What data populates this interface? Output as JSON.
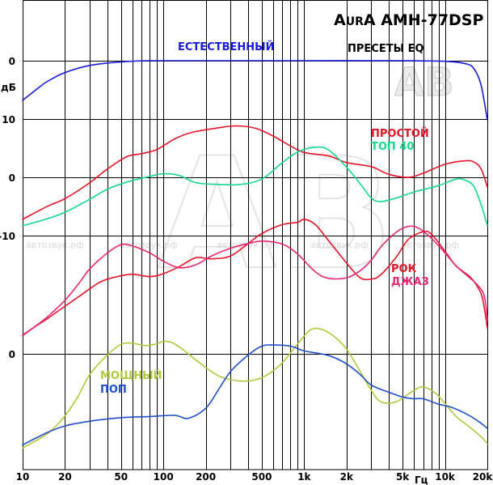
{
  "chart_data": {
    "type": "line",
    "title": "AurA AMH-77DSP",
    "title_prefix": "Aur",
    "title_rest": "A AMH-77DSP",
    "subtitle": "ПРЕСЕТЫ EQ",
    "ylabel": "дБ",
    "xlabel": "Гц",
    "x_scale": "log",
    "xlim": [
      10,
      20000
    ],
    "x_ticks": [
      {
        "value": 10,
        "label": "10"
      },
      {
        "value": 20,
        "label": "20"
      },
      {
        "value": 50,
        "label": "50"
      },
      {
        "value": 100,
        "label": "100"
      },
      {
        "value": 200,
        "label": "200"
      },
      {
        "value": 500,
        "label": "500"
      },
      {
        "value": 1000,
        "label": "1k"
      },
      {
        "value": 2000,
        "label": "2k"
      },
      {
        "value": 5000,
        "label": "5k"
      },
      {
        "value": 10000,
        "label": "10k"
      },
      {
        "value": 20000,
        "label": "20k"
      }
    ],
    "y_ticks": [
      "0",
      "10",
      "0",
      "-10",
      "0"
    ],
    "watermark": "автозвук.рф",
    "logo": "AB",
    "series": [
      {
        "name": "ЕСТЕСТВЕННЫЙ",
        "color": "#1a1adc",
        "points": [
          [
            10,
            -6.7
          ],
          [
            12,
            -5.2
          ],
          [
            15,
            -3.5
          ],
          [
            20,
            -2.0
          ],
          [
            30,
            -0.8
          ],
          [
            50,
            -0.2
          ],
          [
            80,
            0
          ],
          [
            200,
            0
          ],
          [
            1000,
            0
          ],
          [
            5000,
            0
          ],
          [
            10000,
            -0.1
          ],
          [
            14000,
            -0.5
          ],
          [
            16000,
            -1.3
          ],
          [
            18000,
            -4.0
          ],
          [
            20000,
            -10.0
          ]
        ]
      },
      {
        "name": "ПРОСТОЙ",
        "color": "#e8142a",
        "points": [
          [
            10,
            -7.1
          ],
          [
            15,
            -4.9
          ],
          [
            20,
            -3.6
          ],
          [
            30,
            -0.9
          ],
          [
            40,
            1.4
          ],
          [
            55,
            3.5
          ],
          [
            70,
            4.0
          ],
          [
            90,
            4.7
          ],
          [
            120,
            6.5
          ],
          [
            160,
            7.6
          ],
          [
            250,
            8.4
          ],
          [
            330,
            8.7
          ],
          [
            450,
            8.3
          ],
          [
            600,
            7.0
          ],
          [
            800,
            5.3
          ],
          [
            1000,
            4.2
          ],
          [
            1500,
            3.6
          ],
          [
            2000,
            2.5
          ],
          [
            3000,
            1.8
          ],
          [
            4000,
            0.5
          ],
          [
            5500,
            0.0
          ],
          [
            7000,
            0.7
          ],
          [
            10000,
            2.2
          ],
          [
            14000,
            2.8
          ],
          [
            16000,
            2.6
          ],
          [
            18000,
            1.5
          ],
          [
            20000,
            -1.6
          ]
        ]
      },
      {
        "name": "ТОП 40",
        "color": "#18d890",
        "points": [
          [
            10,
            -8.2
          ],
          [
            15,
            -7.0
          ],
          [
            20,
            -5.9
          ],
          [
            30,
            -3.7
          ],
          [
            40,
            -2.0
          ],
          [
            55,
            -0.8
          ],
          [
            75,
            0.0
          ],
          [
            100,
            0.6
          ],
          [
            130,
            0.3
          ],
          [
            170,
            -0.9
          ],
          [
            250,
            -1.2
          ],
          [
            350,
            -1.2
          ],
          [
            500,
            -0.3
          ],
          [
            700,
            2.5
          ],
          [
            900,
            4.3
          ],
          [
            1200,
            5.1
          ],
          [
            1500,
            4.6
          ],
          [
            2000,
            1.7
          ],
          [
            2500,
            -1.1
          ],
          [
            3000,
            -3.5
          ],
          [
            3500,
            -4.1
          ],
          [
            4500,
            -3.5
          ],
          [
            6000,
            -2.5
          ],
          [
            9000,
            -1.4
          ],
          [
            12000,
            -0.3
          ],
          [
            14000,
            -0.5
          ],
          [
            16000,
            -1.5
          ],
          [
            18000,
            -4.5
          ],
          [
            20000,
            -8.1
          ]
        ]
      },
      {
        "name": "РОК",
        "color": "#e8142a",
        "points": [
          [
            10,
            -26.7
          ],
          [
            12,
            -25.4
          ],
          [
            15,
            -23.9
          ],
          [
            20,
            -21.8
          ],
          [
            25,
            -20.2
          ],
          [
            35,
            -17.8
          ],
          [
            45,
            -16.9
          ],
          [
            60,
            -16.4
          ],
          [
            80,
            -16.8
          ],
          [
            100,
            -16.3
          ],
          [
            130,
            -15.1
          ],
          [
            170,
            -13.6
          ],
          [
            220,
            -13.8
          ],
          [
            300,
            -13.3
          ],
          [
            400,
            -11.2
          ],
          [
            500,
            -9.5
          ],
          [
            700,
            -8.0
          ],
          [
            900,
            -7.6
          ],
          [
            1000,
            -7.1
          ],
          [
            1200,
            -8.0
          ],
          [
            1500,
            -10.8
          ],
          [
            2000,
            -14.5
          ],
          [
            2500,
            -17.0
          ],
          [
            3000,
            -17.2
          ],
          [
            3500,
            -16.5
          ],
          [
            4500,
            -13.5
          ],
          [
            5500,
            -10.5
          ],
          [
            7000,
            -9.2
          ],
          [
            8000,
            -9.6
          ],
          [
            10000,
            -12.5
          ],
          [
            12000,
            -15.0
          ],
          [
            15000,
            -16.8
          ],
          [
            17000,
            -18.5
          ],
          [
            18500,
            -20.5
          ],
          [
            20000,
            -25.5
          ]
        ]
      },
      {
        "name": "ДЖАЗ",
        "color": "#e82878",
        "points": [
          [
            10,
            -26.8
          ],
          [
            12,
            -25.4
          ],
          [
            15,
            -23.6
          ],
          [
            20,
            -20.8
          ],
          [
            25,
            -18.0
          ],
          [
            30,
            -15.5
          ],
          [
            40,
            -12.8
          ],
          [
            50,
            -11.4
          ],
          [
            60,
            -11.6
          ],
          [
            80,
            -12.8
          ],
          [
            100,
            -14.2
          ],
          [
            130,
            -15.3
          ],
          [
            170,
            -14.8
          ],
          [
            220,
            -13.3
          ],
          [
            300,
            -12.0
          ],
          [
            400,
            -11.2
          ],
          [
            500,
            -10.8
          ],
          [
            700,
            -11.3
          ],
          [
            900,
            -13.0
          ],
          [
            1200,
            -16.0
          ],
          [
            1500,
            -17.1
          ],
          [
            2000,
            -17.0
          ],
          [
            2500,
            -15.8
          ],
          [
            3000,
            -14.0
          ],
          [
            3500,
            -11.8
          ],
          [
            4500,
            -9.3
          ],
          [
            5500,
            -8.3
          ],
          [
            6500,
            -8.6
          ],
          [
            8000,
            -10.3
          ],
          [
            10000,
            -12.8
          ],
          [
            12000,
            -15.0
          ],
          [
            15000,
            -17.0
          ],
          [
            17000,
            -18.2
          ],
          [
            19000,
            -20.0
          ],
          [
            20000,
            -24.0
          ]
        ]
      },
      {
        "name": "МОЩНЫЙ",
        "color": "#b4c83c",
        "points": [
          [
            10,
            -15.9
          ],
          [
            15,
            -13.5
          ],
          [
            20,
            -10.5
          ],
          [
            25,
            -7.0
          ],
          [
            30,
            -3.5
          ],
          [
            40,
            -0.2
          ],
          [
            50,
            1.6
          ],
          [
            60,
            1.8
          ],
          [
            75,
            1.4
          ],
          [
            90,
            1.7
          ],
          [
            100,
            2.1
          ],
          [
            115,
            1.9
          ],
          [
            140,
            0.6
          ],
          [
            180,
            -1.5
          ],
          [
            250,
            -3.8
          ],
          [
            350,
            -4.6
          ],
          [
            450,
            -4.4
          ],
          [
            550,
            -3.5
          ],
          [
            700,
            -1.5
          ],
          [
            900,
            1.7
          ],
          [
            1100,
            4.0
          ],
          [
            1300,
            4.2
          ],
          [
            1600,
            3.1
          ],
          [
            2000,
            0.8
          ],
          [
            2500,
            -3.0
          ],
          [
            3000,
            -6.2
          ],
          [
            3500,
            -8.1
          ],
          [
            4500,
            -8.1
          ],
          [
            6000,
            -6.2
          ],
          [
            7000,
            -5.6
          ],
          [
            8500,
            -6.6
          ],
          [
            10000,
            -8.4
          ],
          [
            12000,
            -10.6
          ],
          [
            15000,
            -12.4
          ],
          [
            18000,
            -14.0
          ],
          [
            20000,
            -15.2
          ]
        ]
      },
      {
        "name": "ПОП",
        "color": "#2050c8",
        "points": [
          [
            10,
            -15.4
          ],
          [
            15,
            -13.3
          ],
          [
            20,
            -12.2
          ],
          [
            30,
            -11.4
          ],
          [
            50,
            -10.8
          ],
          [
            80,
            -10.6
          ],
          [
            120,
            -10.4
          ],
          [
            150,
            -10.9
          ],
          [
            200,
            -9.2
          ],
          [
            250,
            -5.8
          ],
          [
            300,
            -3.0
          ],
          [
            400,
            -0.2
          ],
          [
            500,
            1.3
          ],
          [
            600,
            1.5
          ],
          [
            800,
            1.3
          ],
          [
            1000,
            0.5
          ],
          [
            1500,
            -0.3
          ],
          [
            2000,
            -1.7
          ],
          [
            2500,
            -3.5
          ],
          [
            3000,
            -5.3
          ],
          [
            4000,
            -6.5
          ],
          [
            5000,
            -7.3
          ],
          [
            6000,
            -7.6
          ],
          [
            7000,
            -7.6
          ],
          [
            9000,
            -8.5
          ],
          [
            11000,
            -9.0
          ],
          [
            14000,
            -10.1
          ],
          [
            17000,
            -11.3
          ],
          [
            20000,
            -12.6
          ]
        ]
      }
    ],
    "series_labels": [
      {
        "series": "ЕСТЕСТВЕННЫЙ",
        "text": "ЕСТЕСТВЕННЫЙ"
      },
      {
        "series": "ПРОСТОЙ",
        "text": "ПРОСТОЙ"
      },
      {
        "series": "ТОП 40",
        "text": "ТОП 40"
      },
      {
        "series": "РОК",
        "text": "РОК"
      },
      {
        "series": "ДЖАЗ",
        "text": "ДЖАЗ"
      },
      {
        "series": "МОЩНЫЙ",
        "text": "МОЩНЫЙ"
      },
      {
        "series": "ПОП",
        "text": "ПОП"
      }
    ]
  }
}
